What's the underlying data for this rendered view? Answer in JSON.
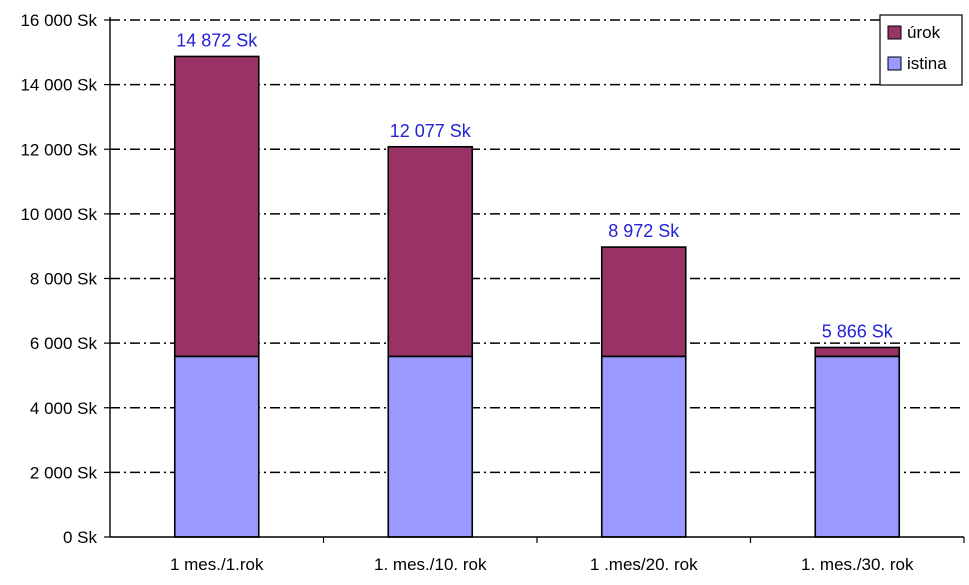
{
  "chart_data": {
    "type": "bar",
    "stacked": true,
    "categories": [
      "1 mes./1.rok",
      "1. mes./10. rok",
      "1 .mes/20. rok",
      "1. mes./30. rok"
    ],
    "series": [
      {
        "name": "istina",
        "color": "#9999ff",
        "values": [
          5590,
          5590,
          5590,
          5590
        ]
      },
      {
        "name": "úrok",
        "color": "#993366",
        "values": [
          9282,
          6487,
          3382,
          276
        ]
      }
    ],
    "totals": [
      "14 872 Sk",
      "12 077 Sk",
      "8 972 Sk",
      "5 866 Sk"
    ],
    "total_values": [
      14872,
      12077,
      8972,
      5866
    ],
    "total_label_color": "#2323d6",
    "ylim": [
      0,
      16000
    ],
    "y_ticks": [
      0,
      2000,
      4000,
      6000,
      8000,
      10000,
      12000,
      14000,
      16000
    ],
    "y_tick_labels": [
      "0 Sk",
      "2 000 Sk",
      "4 000 Sk",
      "6 000 Sk",
      "8 000 Sk",
      "10 000 Sk",
      "12 000 Sk",
      "14 000 Sk",
      "16 000 Sk"
    ],
    "grid": true,
    "grid_style": "dash-dot",
    "legend": {
      "placement": "top-right",
      "items": [
        {
          "label": "úrok",
          "color": "#993366"
        },
        {
          "label": "istina",
          "color": "#9999ff"
        }
      ]
    },
    "title": "",
    "xlabel": "",
    "ylabel": ""
  }
}
